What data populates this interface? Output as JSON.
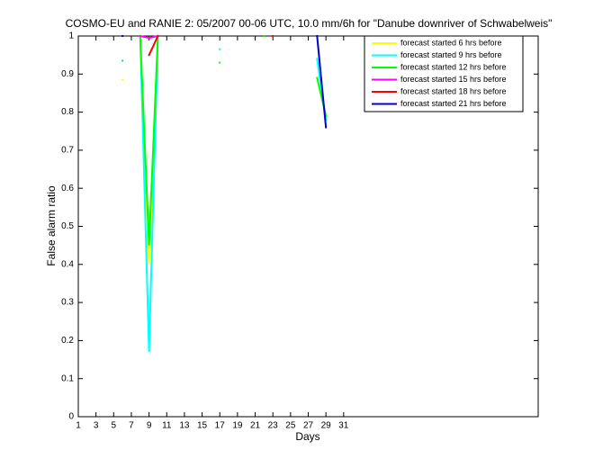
{
  "chart_data": {
    "type": "line",
    "title": "COSMO-EU and RANIE 2: 05/2007 00-06 UTC, 10.0 mm/6h for \"Danube downriver of Schwabelweis\"",
    "x_label": "Days",
    "y_label": "False alarm ratio",
    "x": [
      1,
      2,
      3,
      4,
      5,
      6,
      7,
      8,
      9,
      10,
      11,
      12,
      13,
      14,
      15,
      16,
      17,
      18,
      19,
      20,
      21,
      22,
      23,
      24,
      25,
      26,
      27,
      28,
      29
    ],
    "xlim": [
      1,
      53
    ],
    "xticks": [
      1,
      3,
      5,
      7,
      9,
      11,
      13,
      15,
      17,
      19,
      21,
      23,
      25,
      27,
      29,
      31
    ],
    "ylim": [
      0,
      1
    ],
    "yticks": [
      0,
      0.1,
      0.2,
      0.3,
      0.4,
      0.5,
      0.6,
      0.7,
      0.8,
      0.9,
      1
    ],
    "legend": "top-right",
    "series": [
      {
        "name": "forecast started 6 hrs before",
        "color": "#ffff00",
        "values": [
          null,
          null,
          null,
          null,
          null,
          0.885,
          null,
          1,
          0.4,
          1,
          null,
          null,
          null,
          null,
          null,
          null,
          null,
          null,
          null,
          null,
          null,
          1,
          null,
          null,
          null,
          null,
          null,
          null,
          null
        ]
      },
      {
        "name": "forecast started 9 hrs before",
        "color": "#00ffff",
        "values": [
          null,
          null,
          null,
          null,
          null,
          null,
          null,
          1,
          0.17,
          1,
          null,
          null,
          null,
          null,
          null,
          null,
          0.965,
          null,
          null,
          null,
          null,
          null,
          null,
          null,
          null,
          null,
          null,
          0.94,
          0.78
        ]
      },
      {
        "name": "forecast started 12 hrs before",
        "color": "#00ff00",
        "values": [
          null,
          null,
          null,
          null,
          null,
          0.935,
          null,
          1,
          0.45,
          1,
          null,
          null,
          null,
          null,
          null,
          null,
          0.93,
          null,
          null,
          null,
          null,
          1,
          null,
          null,
          null,
          null,
          null,
          0.89,
          0.79
        ]
      },
      {
        "name": "forecast started 15 hrs before",
        "color": "#ff00ff",
        "values": [
          null,
          null,
          null,
          null,
          null,
          null,
          null,
          1,
          0.995,
          1,
          null,
          null,
          null,
          null,
          null,
          null,
          null,
          null,
          null,
          null,
          null,
          null,
          null,
          null,
          null,
          null,
          null,
          null,
          null
        ]
      },
      {
        "name": "forecast started 18 hrs before",
        "color": "#ff0000",
        "values": [
          null,
          null,
          null,
          null,
          null,
          null,
          null,
          null,
          0.95,
          1,
          null,
          null,
          null,
          null,
          null,
          null,
          null,
          null,
          null,
          null,
          null,
          null,
          1,
          null,
          null,
          null,
          null,
          null,
          null
        ]
      },
      {
        "name": "forecast started 21 hrs before",
        "color": "#0000cc",
        "values": [
          null,
          null,
          null,
          null,
          null,
          1,
          null,
          null,
          null,
          null,
          null,
          null,
          null,
          null,
          null,
          null,
          null,
          null,
          null,
          null,
          null,
          null,
          null,
          null,
          null,
          null,
          null,
          1,
          0.76
        ]
      }
    ]
  }
}
